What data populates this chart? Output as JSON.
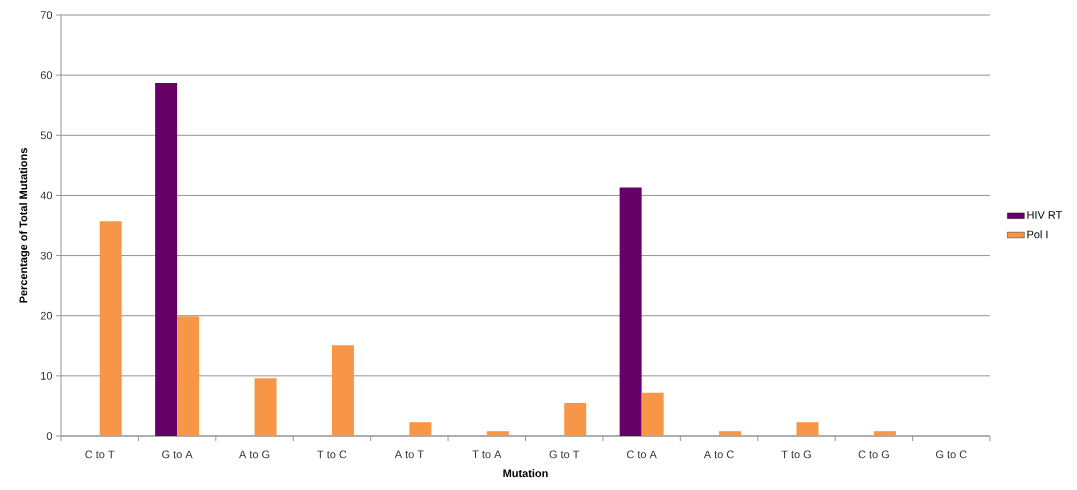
{
  "chart_data": {
    "type": "bar",
    "xlabel": "Mutation",
    "ylabel": "Percentage of Total Mutations",
    "categories": [
      "C to T",
      "G to A",
      "A to G",
      "T to C",
      "A to T",
      "T to A",
      "G to T",
      "C to A",
      "A to C",
      "T to G",
      "C to G",
      "G to C"
    ],
    "series": [
      {
        "name": "HIV RT",
        "color": "#660066",
        "values": [
          0,
          58.7,
          0,
          0,
          0,
          0,
          0,
          41.3,
          0,
          0,
          0,
          0
        ]
      },
      {
        "name": "Pol I",
        "color": "#f79646",
        "values": [
          35.7,
          19.9,
          9.6,
          15.1,
          2.3,
          0.8,
          5.5,
          7.2,
          0.8,
          2.3,
          0.8,
          0
        ]
      }
    ],
    "ylim": [
      0,
      70
    ],
    "yticks": [
      0,
      10,
      20,
      30,
      40,
      50,
      60,
      70
    ],
    "grid": "y",
    "legend": "right"
  }
}
